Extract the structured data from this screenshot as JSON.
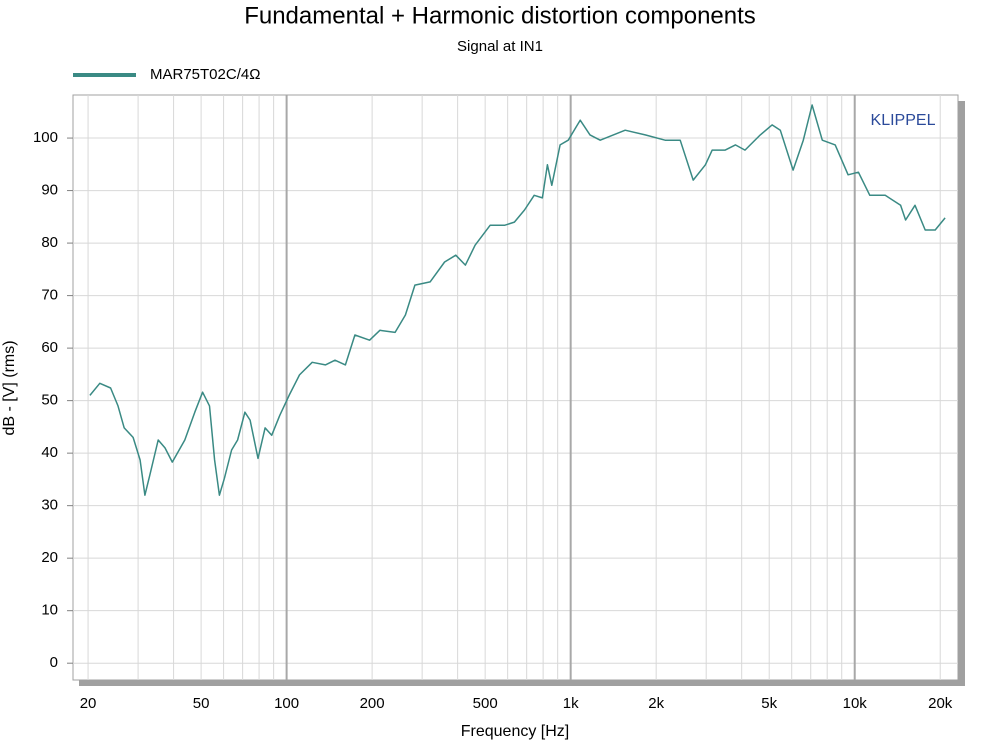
{
  "chart_data": {
    "type": "line",
    "title": "Fundamental + Harmonic distortion components",
    "subtitle": "Signal at IN1",
    "xlabel": "Frequency [Hz]",
    "ylabel": "dB - [V]  (rms)",
    "annotation": "KLIPPEL",
    "xscale": "log",
    "grid": true,
    "xlim": [
      17.7,
      23100
    ],
    "ylim": [
      -3.2,
      108.2
    ],
    "xticks": [
      20,
      50,
      100,
      200,
      500,
      {
        "value": 1000,
        "label": "1k"
      },
      {
        "value": 2000,
        "label": "2k"
      },
      {
        "value": 5000,
        "label": "5k"
      },
      {
        "value": 10000,
        "label": "10k"
      },
      {
        "value": 20000,
        "label": "20k"
      }
    ],
    "xminorticks": [
      30,
      40,
      60,
      70,
      80,
      90,
      300,
      400,
      600,
      700,
      800,
      900,
      3000,
      4000,
      6000,
      7000,
      8000,
      9000
    ],
    "yticks": [
      0,
      10,
      20,
      30,
      40,
      50,
      60,
      70,
      80,
      90,
      100
    ],
    "x": [
      20.3,
      22.0,
      24.0,
      25.5,
      26.8,
      28.8,
      30.5,
      31.7,
      33,
      35.3,
      37.3,
      39.6,
      43.8,
      47.5,
      50.6,
      53.5,
      55.8,
      58,
      60.4,
      64,
      67.2,
      71.3,
      74.4,
      79.3,
      84,
      88.6,
      94.6,
      102,
      111,
      123,
      137,
      148,
      161,
      174,
      196,
      213,
      241,
      262,
      283,
      320,
      360,
      394,
      426,
      461,
      521,
      587,
      634,
      688,
      744,
      795,
      828,
      858,
      918,
      980,
      1080,
      1170,
      1270,
      1556,
      1830,
      2150,
      2430,
      2700,
      2980,
      3150,
      3500,
      3800,
      4110,
      4650,
      5120,
      5470,
      6070,
      6590,
      7080,
      7690,
      8540,
      9480,
      10300,
      11300,
      12800,
      14500,
      15100,
      16300,
      17700,
      19200,
      20800
    ],
    "series": [
      {
        "name": "MAR75T02C/4Ω",
        "color": "#3a8a84",
        "values": [
          51,
          53.3,
          52.4,
          49,
          44.8,
          43,
          38.7,
          32,
          35.8,
          42.5,
          41,
          38.3,
          42.5,
          47.8,
          51.6,
          49,
          38.7,
          32,
          35.2,
          40.6,
          42.5,
          47.8,
          46.3,
          39,
          44.8,
          43.4,
          47.2,
          51,
          54.9,
          57.3,
          56.8,
          57.7,
          56.8,
          62.5,
          61.5,
          63.4,
          63,
          66.3,
          72,
          72.6,
          76.4,
          77.7,
          75.8,
          79.6,
          83.4,
          83.4,
          84,
          86.3,
          89.1,
          88.6,
          94.9,
          91,
          98.7,
          99.6,
          103.4,
          100.6,
          99.6,
          101.5,
          100.6,
          99.6,
          99.6,
          92,
          94.9,
          97.7,
          97.7,
          98.7,
          97.7,
          100.6,
          102.5,
          101.5,
          93.9,
          99.6,
          106.3,
          99.6,
          98.7,
          93,
          93.5,
          89.1,
          89.1,
          87.2,
          84.4,
          87.2,
          82.5,
          82.5,
          84.8
        ]
      }
    ]
  }
}
